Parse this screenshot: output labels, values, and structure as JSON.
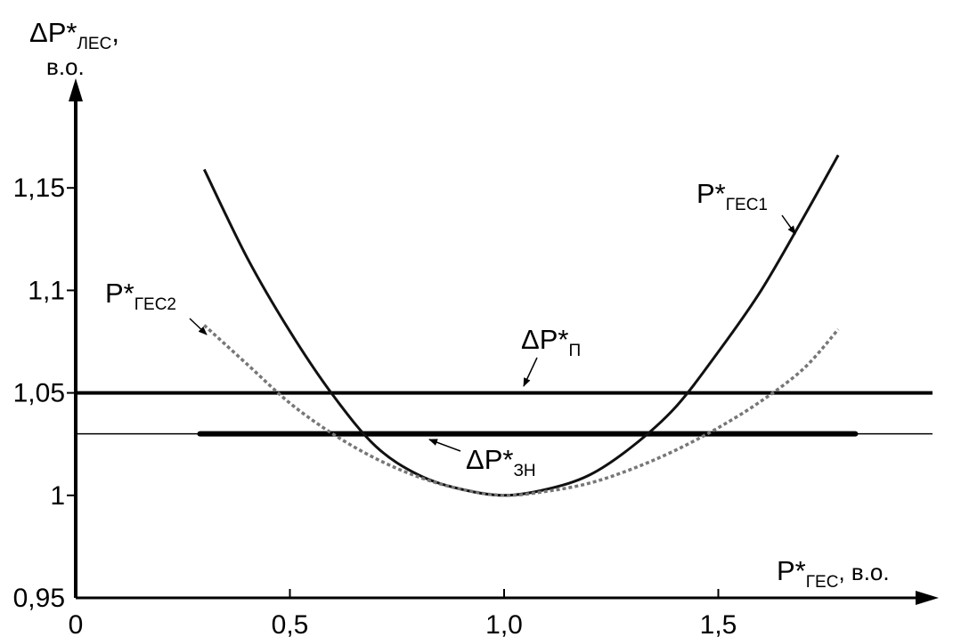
{
  "chart_data": {
    "type": "line",
    "xlim": [
      0,
      2.0
    ],
    "ylim": [
      0.95,
      1.2
    ],
    "x_ticks": [
      {
        "value": 0,
        "label": "0"
      },
      {
        "value": 0.5,
        "label": "0,5"
      },
      {
        "value": 1.0,
        "label": "1,0"
      },
      {
        "value": 1.5,
        "label": "1,5"
      }
    ],
    "y_ticks": [
      {
        "value": 0.95,
        "label": "0,95"
      },
      {
        "value": 1.0,
        "label": "1"
      },
      {
        "value": 1.05,
        "label": "1,05"
      },
      {
        "value": 1.1,
        "label": "1,1"
      },
      {
        "value": 1.15,
        "label": "1,15"
      }
    ],
    "ylabel": {
      "main": "ΔP*",
      "sub": "ЛЕС",
      "unit": "в.о."
    },
    "xlabel": {
      "main": "P*",
      "sub": "ГЕС",
      "unit": ", в.о."
    },
    "grid": false,
    "series": [
      {
        "name_main": "P*",
        "name_sub": "ГЕС1",
        "style": "solid",
        "color": "#111111",
        "x": [
          0.3,
          0.4,
          0.5,
          0.6,
          0.7,
          0.8,
          0.9,
          1.0,
          1.1,
          1.2,
          1.3,
          1.4,
          1.5,
          1.6,
          1.7,
          1.78
        ],
        "y": [
          1.159,
          1.116,
          1.08,
          1.049,
          1.024,
          1.01,
          1.003,
          1.0,
          1.003,
          1.01,
          1.024,
          1.043,
          1.07,
          1.1,
          1.136,
          1.166
        ]
      },
      {
        "name_main": "P*",
        "name_sub": "ГЕС2",
        "style": "dotted",
        "color": "#777777",
        "x": [
          0.3,
          0.4,
          0.5,
          0.6,
          0.7,
          0.8,
          0.9,
          1.0,
          1.1,
          1.2,
          1.3,
          1.4,
          1.5,
          1.6,
          1.7,
          1.78
        ],
        "y": [
          1.083,
          1.064,
          1.045,
          1.03,
          1.018,
          1.009,
          1.003,
          1.0,
          1.002,
          1.006,
          1.013,
          1.022,
          1.033,
          1.046,
          1.062,
          1.081
        ]
      }
    ],
    "hlines": [
      {
        "name_main": "ΔP*",
        "name_sub": "П",
        "y": 1.05,
        "x_start": 0,
        "x_end": 2.0,
        "width": "thick"
      },
      {
        "name_main": "ΔP*",
        "name_sub": "ЗН",
        "y": 1.03,
        "x_start": 0,
        "x_end": 2.0,
        "width": "thin",
        "bold_segment": [
          0.29,
          1.82
        ]
      }
    ]
  }
}
